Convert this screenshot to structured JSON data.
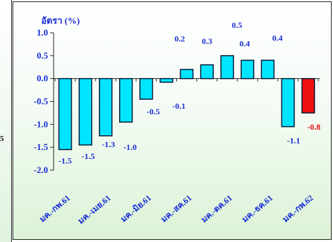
{
  "edge": {
    "cut_label": "5"
  },
  "chart_data": {
    "type": "bar",
    "title": "",
    "ylabel": "อัตรา (%)",
    "xlabel": "",
    "ylim": [
      -2.0,
      1.0
    ],
    "yticks": [
      "1.0",
      "0.5",
      "0.0",
      "-0.5",
      "-1.0",
      "-1.5",
      "-2.0"
    ],
    "ytick_values": [
      1.0,
      0.5,
      0.0,
      -0.5,
      -1.0,
      -1.5,
      -2.0
    ],
    "category_labels": [
      "มค.-กพ.61",
      "มค.-เมย.61",
      "มค.-มิย.61",
      "มค.-สค.61",
      "มค.-ตค.61",
      "มค.-ธค.61",
      "มค.-กพ.62"
    ],
    "values": [
      -1.55,
      -1.45,
      -1.25,
      -0.95,
      -0.45,
      -0.08,
      0.2,
      0.3,
      0.5,
      0.4,
      0.4,
      -1.05,
      -0.75
    ],
    "data_labels": [
      "-1.5",
      "-1.5",
      "-1.3",
      "-1.0",
      "-0.5",
      "-0.1",
      "0.2",
      "0.3",
      "0.5",
      "0.4",
      "0.4",
      "-1.1",
      "-0.8"
    ],
    "colors": {
      "default": "#00e5ff",
      "highlight": "#ee1111",
      "text": "#1a2fd6",
      "highlight_text": "#e01010"
    },
    "highlight_index": 12,
    "grid": false,
    "legend": "none"
  }
}
